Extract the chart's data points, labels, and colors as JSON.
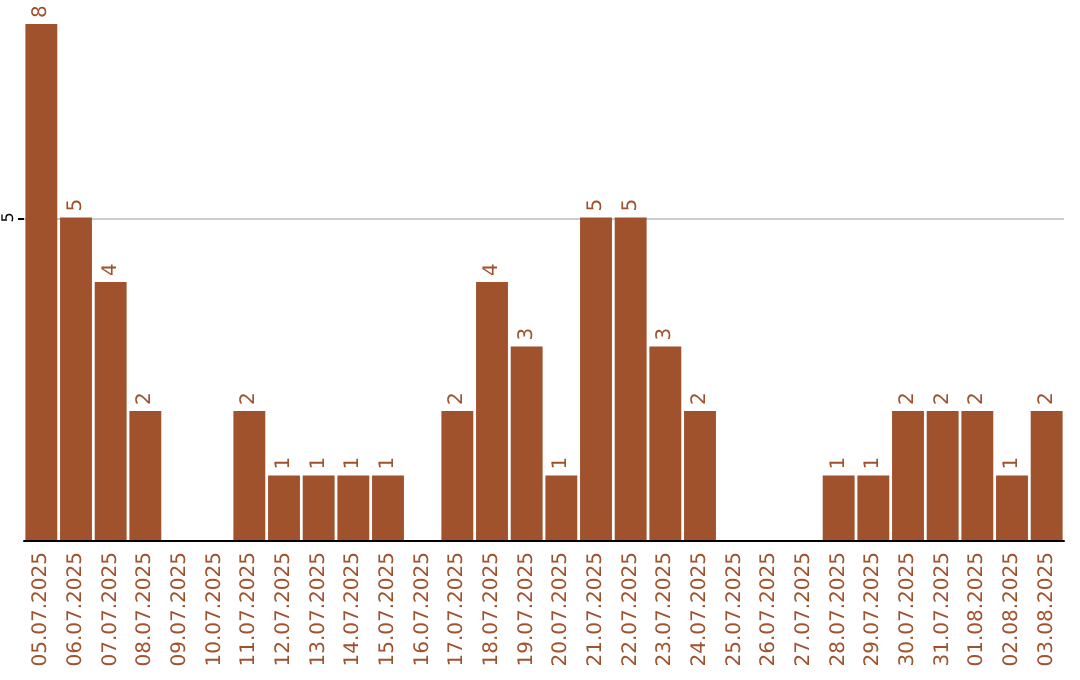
{
  "chart_data": {
    "type": "bar",
    "categories": [
      "05.07.2025",
      "06.07.2025",
      "07.07.2025",
      "08.07.2025",
      "09.07.2025",
      "10.07.2025",
      "11.07.2025",
      "12.07.2025",
      "13.07.2025",
      "14.07.2025",
      "15.07.2025",
      "16.07.2025",
      "17.07.2025",
      "18.07.2025",
      "19.07.2025",
      "20.07.2025",
      "21.07.2025",
      "22.07.2025",
      "23.07.2025",
      "24.07.2025",
      "25.07.2025",
      "26.07.2025",
      "27.07.2025",
      "28.07.2025",
      "29.07.2025",
      "30.07.2025",
      "31.07.2025",
      "01.08.2025",
      "02.08.2025",
      "03.08.2025"
    ],
    "values": [
      8,
      5,
      4,
      2,
      0,
      0,
      2,
      1,
      1,
      1,
      1,
      0,
      2,
      4,
      3,
      1,
      5,
      5,
      3,
      2,
      0,
      0,
      0,
      1,
      1,
      2,
      2,
      2,
      1,
      2
    ],
    "value_labels": [
      "8",
      "5",
      "4",
      "2",
      null,
      null,
      "2",
      "1",
      "1",
      "1",
      "1",
      null,
      "2",
      "4",
      "3",
      "1",
      "5",
      "5",
      "3",
      "2",
      null,
      null,
      null,
      "1",
      "1",
      "2",
      "2",
      "2",
      "1",
      "2"
    ],
    "color": "#a0522d",
    "ylim": [
      0,
      8
    ],
    "yticks": [
      5
    ],
    "grid": "y"
  }
}
